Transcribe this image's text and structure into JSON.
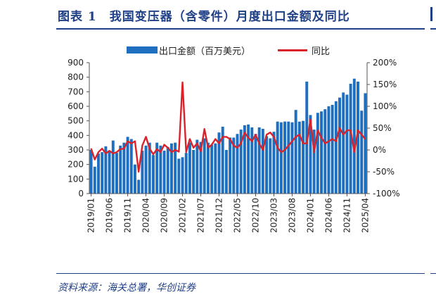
{
  "title": "图表 1　我国变压器（含零件）月度出口金额及同比",
  "source": "资料来源：海关总署，华创证券",
  "colors": {
    "bar": "#1f6fc0",
    "line": "#d9232a",
    "brand": "#1f3f86"
  },
  "chart_data": {
    "type": "bar",
    "legend": [
      "出口金额（百万美元）",
      "同比"
    ],
    "legend_placement": "top",
    "grid": false,
    "y_left": {
      "ticks": [
        "0",
        "100",
        "200",
        "300",
        "400",
        "500",
        "600",
        "700",
        "800",
        "900"
      ],
      "range": [
        0,
        900
      ]
    },
    "y_right": {
      "ticks": [
        "-100%",
        "-50%",
        "0%",
        "50%",
        "100%",
        "150%",
        "200%"
      ],
      "range": [
        -100,
        200
      ]
    },
    "x_tick_labels": [
      "2019/01",
      "2019/06",
      "2019/11",
      "2020/04",
      "2020/09",
      "2021/02",
      "2021/07",
      "2021/12",
      "2022/05",
      "2022/10",
      "2023/03",
      "2023/08",
      "2024/01",
      "2024/06",
      "2024/11",
      "2025/04"
    ],
    "x_tick_label_positions": [
      0,
      5,
      10,
      15,
      20,
      25,
      30,
      35,
      40,
      45,
      50,
      55,
      60,
      65,
      70,
      75
    ],
    "categories": [
      "2019/01",
      "2019/02",
      "2019/03",
      "2019/04",
      "2019/05",
      "2019/06",
      "2019/07",
      "2019/08",
      "2019/09",
      "2019/10",
      "2019/11",
      "2019/12",
      "2020/01",
      "2020/02",
      "2020/03",
      "2020/04",
      "2020/05",
      "2020/06",
      "2020/07",
      "2020/08",
      "2020/09",
      "2020/10",
      "2020/11",
      "2020/12",
      "2021/01",
      "2021/02",
      "2021/03",
      "2021/04",
      "2021/05",
      "2021/06",
      "2021/07",
      "2021/08",
      "2021/09",
      "2021/10",
      "2021/11",
      "2021/12",
      "2022/01",
      "2022/02",
      "2022/03",
      "2022/04",
      "2022/05",
      "2022/06",
      "2022/07",
      "2022/08",
      "2022/09",
      "2022/10",
      "2022/11",
      "2022/12",
      "2023/01",
      "2023/02",
      "2023/03",
      "2023/04",
      "2023/05",
      "2023/06",
      "2023/07",
      "2023/08",
      "2023/09",
      "2023/10",
      "2023/11",
      "2023/12",
      "2024/01",
      "2024/02",
      "2024/03",
      "2024/04",
      "2024/05",
      "2024/06",
      "2024/07",
      "2024/08",
      "2024/09",
      "2024/10",
      "2024/11",
      "2024/12",
      "2025/01",
      "2025/02",
      "2025/03",
      "2025/04"
    ],
    "series": [
      {
        "name": "出口金额（百万美元）",
        "type": "bar",
        "axis": "left",
        "values": [
          300,
          185,
          275,
          285,
          325,
          295,
          365,
          280,
          330,
          350,
          390,
          375,
          200,
          95,
          295,
          330,
          350,
          265,
          350,
          330,
          295,
          320,
          345,
          350,
          240,
          250,
          280,
          350,
          300,
          370,
          355,
          380,
          350,
          335,
          345,
          420,
          460,
          300,
          385,
          385,
          410,
          440,
          470,
          475,
          455,
          410,
          455,
          445,
          395,
          380,
          425,
          495,
          490,
          495,
          495,
          490,
          575,
          495,
          500,
          770,
          540,
          440,
          555,
          565,
          580,
          600,
          610,
          635,
          660,
          695,
          680,
          755,
          790,
          770,
          570,
          690
        ]
      },
      {
        "name": "同比",
        "type": "line",
        "axis": "right",
        "values": [
          3,
          -22,
          -5,
          3,
          -8,
          -2,
          -8,
          -5,
          2,
          3,
          20,
          15,
          20,
          -50,
          10,
          30,
          3,
          -10,
          2,
          -5,
          12,
          5,
          -5,
          0,
          -4,
          155,
          -5,
          25,
          5,
          15,
          -3,
          48,
          5,
          12,
          25,
          15,
          30,
          30,
          25,
          10,
          5,
          15,
          40,
          28,
          20,
          35,
          15,
          0,
          35,
          40,
          30,
          5,
          -5,
          0,
          10,
          20,
          30,
          35,
          15,
          15,
          70,
          -5,
          45,
          28,
          15,
          20,
          25,
          20,
          50,
          35,
          45,
          45,
          -5,
          45,
          35,
          25
        ]
      }
    ]
  }
}
